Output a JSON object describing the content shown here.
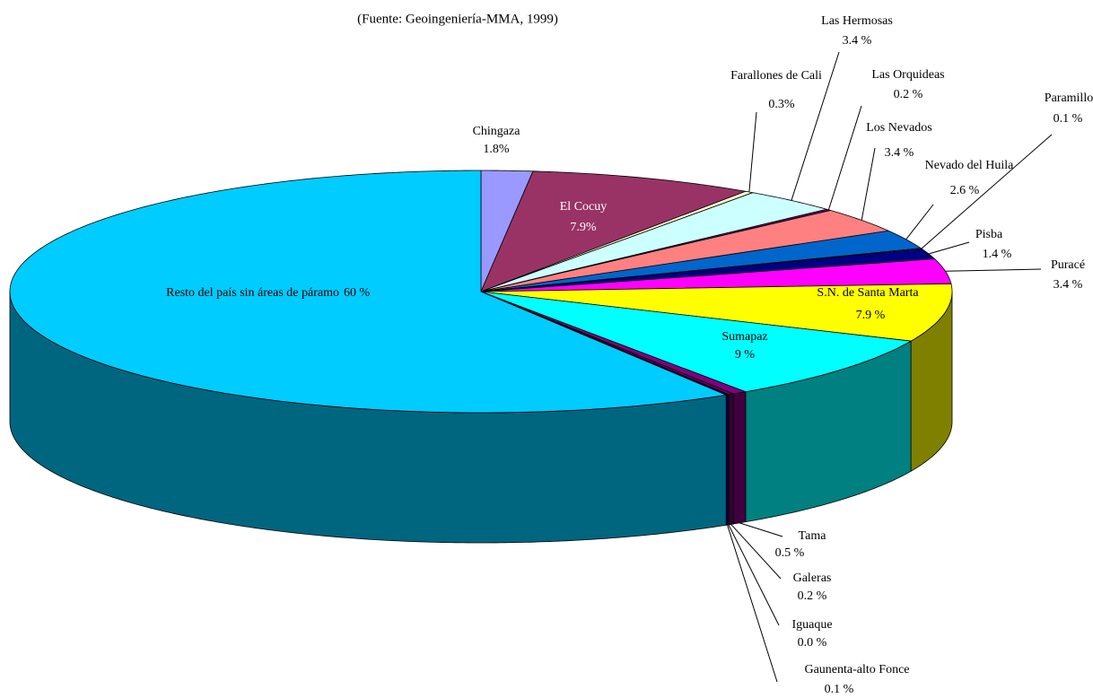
{
  "chart_data": {
    "type": "pie3d",
    "subtitle": "(Fuente: Geoingeniería-MMA, 1999)",
    "categories": [
      "Chingaza",
      "El Cocuy",
      "Farallones de Cali",
      "Las Hermosas",
      "Las Orquideas",
      "Los Nevados",
      "Nevado del Huila",
      "Paramillo",
      "Pisba",
      "Puracé",
      "S.N. de Santa Marta",
      "Sumapaz",
      "Tama",
      "Galeras",
      "Iguaque",
      "Gaunenta-alto Fonce",
      "Resto del país sin áreas de páramo"
    ],
    "values": [
      1.8,
      7.9,
      0.3,
      3.4,
      0.2,
      3.4,
      2.6,
      0.1,
      1.4,
      3.4,
      7.9,
      9,
      0.5,
      0.2,
      0,
      0.1,
      60
    ],
    "value_labels": [
      "1.8%",
      "7.9%",
      "0.3%",
      "3.4 %",
      "0.2 %",
      "3.4 %",
      "2.6 %",
      "0.1 %",
      "1.4 %",
      "3.4 %",
      "7.9 %",
      "9 %",
      "0.5 %",
      "0.2 %",
      "0.0 %",
      "0.1 %",
      "60 %"
    ],
    "colors": [
      "#9999ff",
      "#993366",
      "#ffffcc",
      "#ccffff",
      "#660066",
      "#ff8080",
      "#0066cc",
      "#ccccff",
      "#000080",
      "#ff00ff",
      "#ffff00",
      "#00ffff",
      "#800080",
      "#660066",
      "#008080",
      "#000080",
      "#00ccff"
    ]
  }
}
